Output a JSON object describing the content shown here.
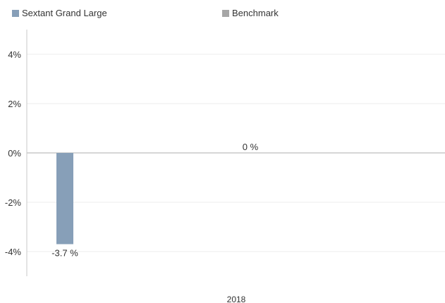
{
  "chart_data": {
    "type": "bar",
    "categories": [
      "2018"
    ],
    "series": [
      {
        "name": "Sextant Grand Large",
        "values": [
          -3.7
        ],
        "labels": [
          "-3.7 %"
        ],
        "color": "#879fb8"
      },
      {
        "name": "Benchmark",
        "values": [
          0
        ],
        "labels": [
          "0 %"
        ],
        "color": "#a6a6a6"
      }
    ],
    "yticks": [
      "4%",
      "2%",
      "0%",
      "-2%",
      "-4%"
    ],
    "ytick_values": [
      4,
      2,
      0,
      -2,
      -4
    ],
    "ylim": [
      -5,
      5
    ],
    "legend_position": "top",
    "grid": true
  }
}
